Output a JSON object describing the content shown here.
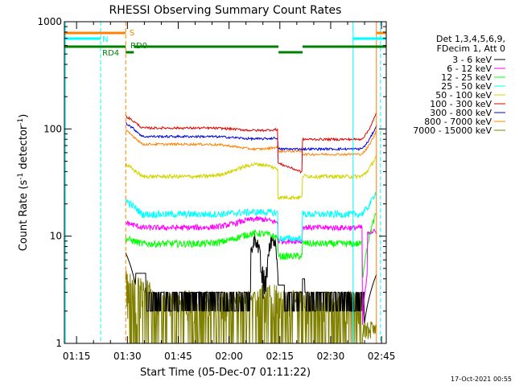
{
  "chart_data": {
    "type": "line",
    "title": "RHESSI Observing Summary Count Rates",
    "xlabel": "Start Time (05-Dec-07 01:11:22)",
    "ylabel_main": "Count Rate (s",
    "ylabel_sup1": "-1",
    "ylabel_mid": " detector",
    "ylabel_sup2": "-1",
    "ylabel_end": ")",
    "y_scale": "log",
    "ylim": [
      1,
      1000
    ],
    "xlim_minutes": [
      1.0,
      96.0
    ],
    "x_ticks": [
      {
        "m": 4.6,
        "label": "01:15"
      },
      {
        "m": 19.6,
        "label": "01:30"
      },
      {
        "m": 34.6,
        "label": "01:45"
      },
      {
        "m": 49.6,
        "label": "02:00"
      },
      {
        "m": 64.6,
        "label": "02:15"
      },
      {
        "m": 79.6,
        "label": "02:30"
      },
      {
        "m": 94.6,
        "label": "02:45"
      }
    ],
    "y_ticks": [
      {
        "v": 1,
        "label": "1"
      },
      {
        "v": 10,
        "label": "10"
      },
      {
        "v": 100,
        "label": "100"
      },
      {
        "v": 1000,
        "label": "1000"
      }
    ],
    "legend_header": [
      "Det 1,3,4,5,6,9,",
      "FDecim 1, Att 0"
    ],
    "series": [
      {
        "name": "3 - 6 keV",
        "color": "#000000"
      },
      {
        "name": "6 - 12 keV",
        "color": "#ff00ff"
      },
      {
        "name": "12 - 25 keV",
        "color": "#00ff00"
      },
      {
        "name": "25 - 50 keV",
        "color": "#00ffff"
      },
      {
        "name": "50 - 100 keV",
        "color": "#d4d400"
      },
      {
        "name": "100 - 300 keV",
        "color": "#dd0000"
      },
      {
        "name": "300 - 800 keV",
        "color": "#0000dd"
      },
      {
        "name": "800 - 7000 keV",
        "color": "#ff8000"
      },
      {
        "name": "7000 - 15000 keV",
        "color": "#808000"
      }
    ],
    "flag_labels": [
      {
        "text": "S",
        "color": "#ff8000"
      },
      {
        "text": "N",
        "color": "#00ffff"
      },
      {
        "text": "RD4",
        "color": "#008000"
      },
      {
        "text": "RD0",
        "color": "#008000"
      }
    ]
  },
  "footer_date": "17-Oct-2021 00:55"
}
